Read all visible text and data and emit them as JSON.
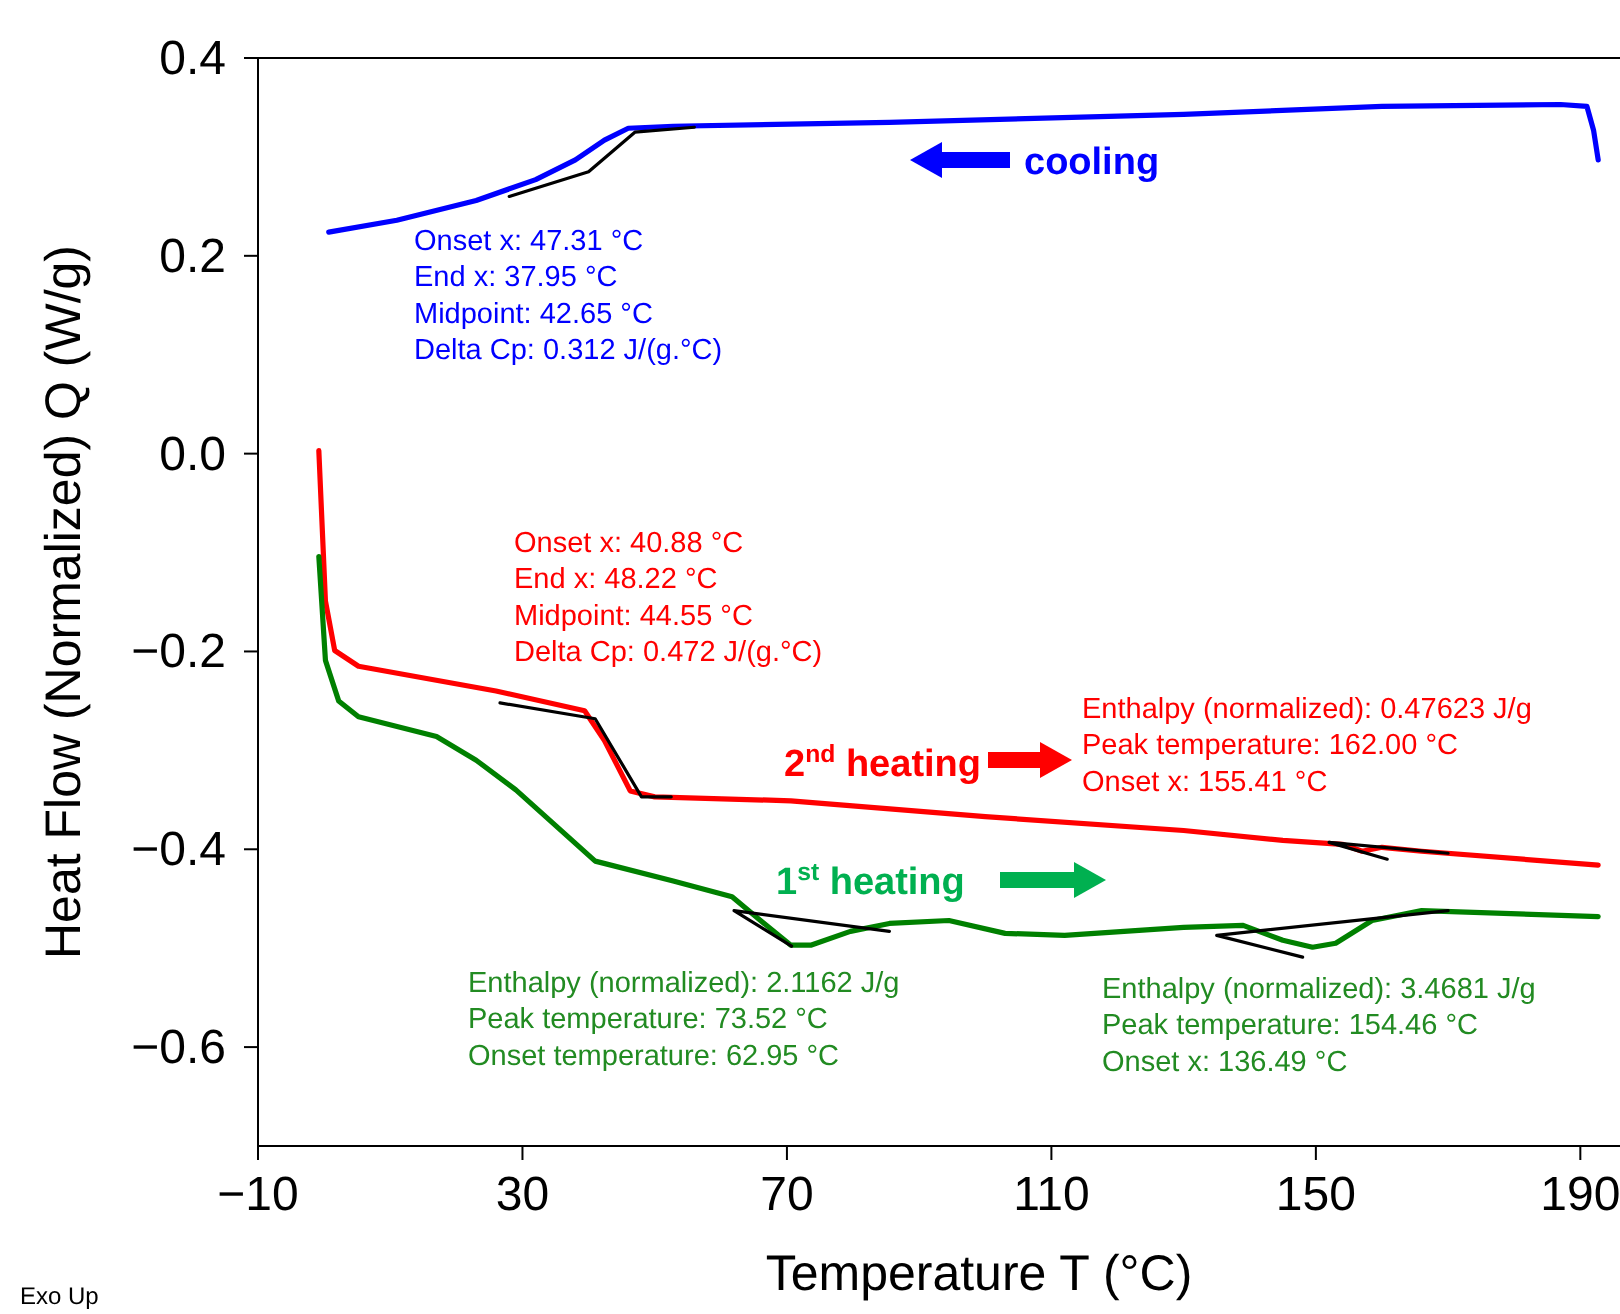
{
  "chart_data": {
    "type": "line",
    "xlabel": "Temperature T (°C)",
    "ylabel": "Heat Flow (Normalized) Q (W/g)",
    "xlim": [
      -10,
      196
    ],
    "ylim": [
      -0.7,
      0.4
    ],
    "xticks": [
      {
        "value": -10,
        "label": "−10"
      },
      30,
      70,
      110,
      150,
      190
    ],
    "yticks": [
      {
        "value": -0.6,
        "label": "−0.6"
      },
      {
        "value": -0.4,
        "label": "−0.4"
      },
      {
        "value": -0.2,
        "label": "−0.2"
      },
      {
        "value": 0,
        "label": "0.0"
      },
      0.2,
      0.4
    ],
    "grid": false,
    "series": [
      {
        "color": "#0000ff",
        "x": [
          0.7,
          11,
          23,
          32,
          38,
          42.4,
          46,
          52.8,
          85.5,
          130,
          160,
          187,
          191,
          192,
          192.7
        ],
        "values": [
          0.224,
          0.236,
          0.256,
          0.277,
          0.297,
          0.317,
          0.329,
          0.331,
          0.335,
          0.343,
          0.351,
          0.353,
          0.351,
          0.327,
          0.297
        ]
      },
      {
        "color": "#ff0000",
        "x": [
          -0.8,
          0.2,
          1.6,
          5.2,
          26,
          39.4,
          42.4,
          46.3,
          50,
          70.6,
          100,
          130,
          145,
          154,
          157,
          160,
          166,
          192.7
        ],
        "values": [
          0.003,
          -0.149,
          -0.199,
          -0.215,
          -0.24,
          -0.26,
          -0.29,
          -0.341,
          -0.347,
          -0.351,
          -0.367,
          -0.381,
          -0.391,
          -0.395,
          -0.402,
          -0.398,
          -0.402,
          -0.416
        ]
      },
      {
        "color": "#008000",
        "x": [
          -0.8,
          0.2,
          2.2,
          5.2,
          17,
          23,
          29,
          41,
          52.8,
          61.7,
          66,
          70.6,
          73.6,
          79.6,
          85.5,
          94.5,
          103,
          112,
          130,
          139,
          145,
          149.5,
          153,
          158.5,
          166,
          192.7
        ],
        "values": [
          -0.104,
          -0.209,
          -0.25,
          -0.266,
          -0.286,
          -0.31,
          -0.34,
          -0.412,
          -0.432,
          -0.448,
          -0.472,
          -0.497,
          -0.497,
          -0.483,
          -0.475,
          -0.472,
          -0.485,
          -0.487,
          -0.479,
          -0.477,
          -0.492,
          -0.499,
          -0.495,
          -0.472,
          -0.462,
          -0.468
        ]
      },
      {
        "color": "#000000",
        "x": [
          28,
          40,
          47,
          56
        ],
        "values": [
          0.26,
          0.285,
          0.325,
          0.33
        ]
      },
      {
        "color": "#000000",
        "x": [
          26.6,
          41,
          48,
          52.5
        ],
        "values": [
          -0.252,
          -0.268,
          -0.347,
          -0.347
        ]
      },
      {
        "color": "#000000",
        "x": [
          170,
          152,
          160.8
        ],
        "values": [
          -0.404,
          -0.393,
          -0.41
        ]
      },
      {
        "color": "#000000",
        "x": [
          85.5,
          62,
          70.7
        ],
        "values": [
          -0.483,
          -0.462,
          -0.498
        ]
      },
      {
        "color": "#000000",
        "x": [
          170,
          135,
          148
        ],
        "values": [
          -0.462,
          -0.487,
          -0.509
        ]
      }
    ],
    "annotations": [
      "cooling",
      "2$^{nd}$ heating",
      "1$^{st}$ heating",
      "Onset x: 47.31 °C\nEnd x: 37.95 °C\nMidpoint: 42.65 °C\nDelta Cp: 0.312 J/(g.°C)",
      "Onset x: 40.88 °C\nEnd x: 48.22 °C\nMidpoint: 44.55 °C\nDelta Cp: 0.472 J/(g.°C)",
      "Enthalpy (normalized): 0.47623 J/g\nPeak temperature: 162.00 °C\nOnset x: 155.41 °C",
      "Enthalpy (normalized): 2.1162 J/g\nPeak temperature: 73.52 °C\nOnset temperature: 62.95 °C",
      "Enthalpy (normalized): 3.4681 J/g\nPeak temperature: 154.46 °C\nOnset x: 136.49 °C",
      "Exo Up"
    ]
  }
}
